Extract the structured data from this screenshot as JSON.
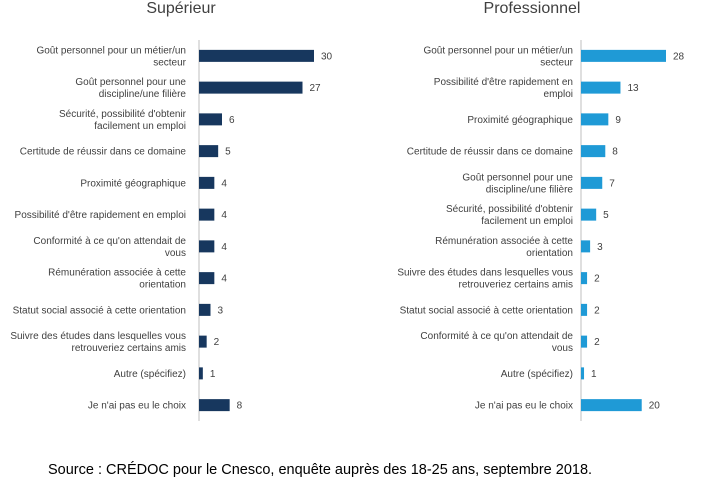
{
  "chart_data": [
    {
      "type": "bar",
      "orientation": "horizontal",
      "title": "Supérieur",
      "color": "#17375e",
      "categories": [
        [
          "Goût personnel pour un métier/un",
          "secteur"
        ],
        [
          "Goût personnel pour une",
          "discipline/une filière"
        ],
        [
          "Sécurité, possibilité d'obtenir",
          "facilement un emploi"
        ],
        [
          "Certitude de réussir dans ce domaine"
        ],
        [
          "Proximité géographique"
        ],
        [
          "Possibilité d'être rapidement en emploi"
        ],
        [
          "Conformité à ce qu'on attendait de",
          "vous"
        ],
        [
          "Rémunération associée à cette",
          "orientation"
        ],
        [
          "Statut social associé à cette orientation"
        ],
        [
          "Suivre des études dans lesquelles vous",
          "retrouveriez certains amis"
        ],
        [
          "Autre (spécifiez)"
        ],
        [
          "Je n'ai pas eu le choix"
        ]
      ],
      "values": [
        30,
        27,
        6,
        5,
        4,
        4,
        4,
        4,
        3,
        2,
        1,
        8
      ],
      "xlim": [
        0,
        30
      ],
      "grid": false,
      "legend": "none"
    },
    {
      "type": "bar",
      "orientation": "horizontal",
      "title": "Professionnel",
      "color": "#1f9ad6",
      "categories": [
        [
          "Goût personnel pour un métier/un",
          "secteur"
        ],
        [
          "Possibilité d'être rapidement en",
          "emploi"
        ],
        [
          "Proximité géographique"
        ],
        [
          "Certitude de réussir dans ce domaine"
        ],
        [
          "Goût personnel pour une",
          "discipline/une filière"
        ],
        [
          "Sécurité, possibilité d'obtenir",
          "facilement un emploi"
        ],
        [
          "Rémunération associée à cette",
          "orientation"
        ],
        [
          "Suivre des études dans lesquelles vous",
          "retrouveriez certains amis"
        ],
        [
          "Statut social associé à cette orientation"
        ],
        [
          "Conformité à ce qu'on attendait de",
          "vous"
        ],
        [
          "Autre (spécifiez)"
        ],
        [
          "Je n'ai pas eu le choix"
        ]
      ],
      "values": [
        28,
        13,
        9,
        8,
        7,
        5,
        3,
        2,
        2,
        2,
        1,
        20
      ],
      "xlim": [
        0,
        28
      ],
      "grid": false,
      "legend": "none"
    }
  ],
  "source": "Source : CRÉDOC pour le Cnesco, enquête auprès des 18-25 ans, septembre 2018."
}
